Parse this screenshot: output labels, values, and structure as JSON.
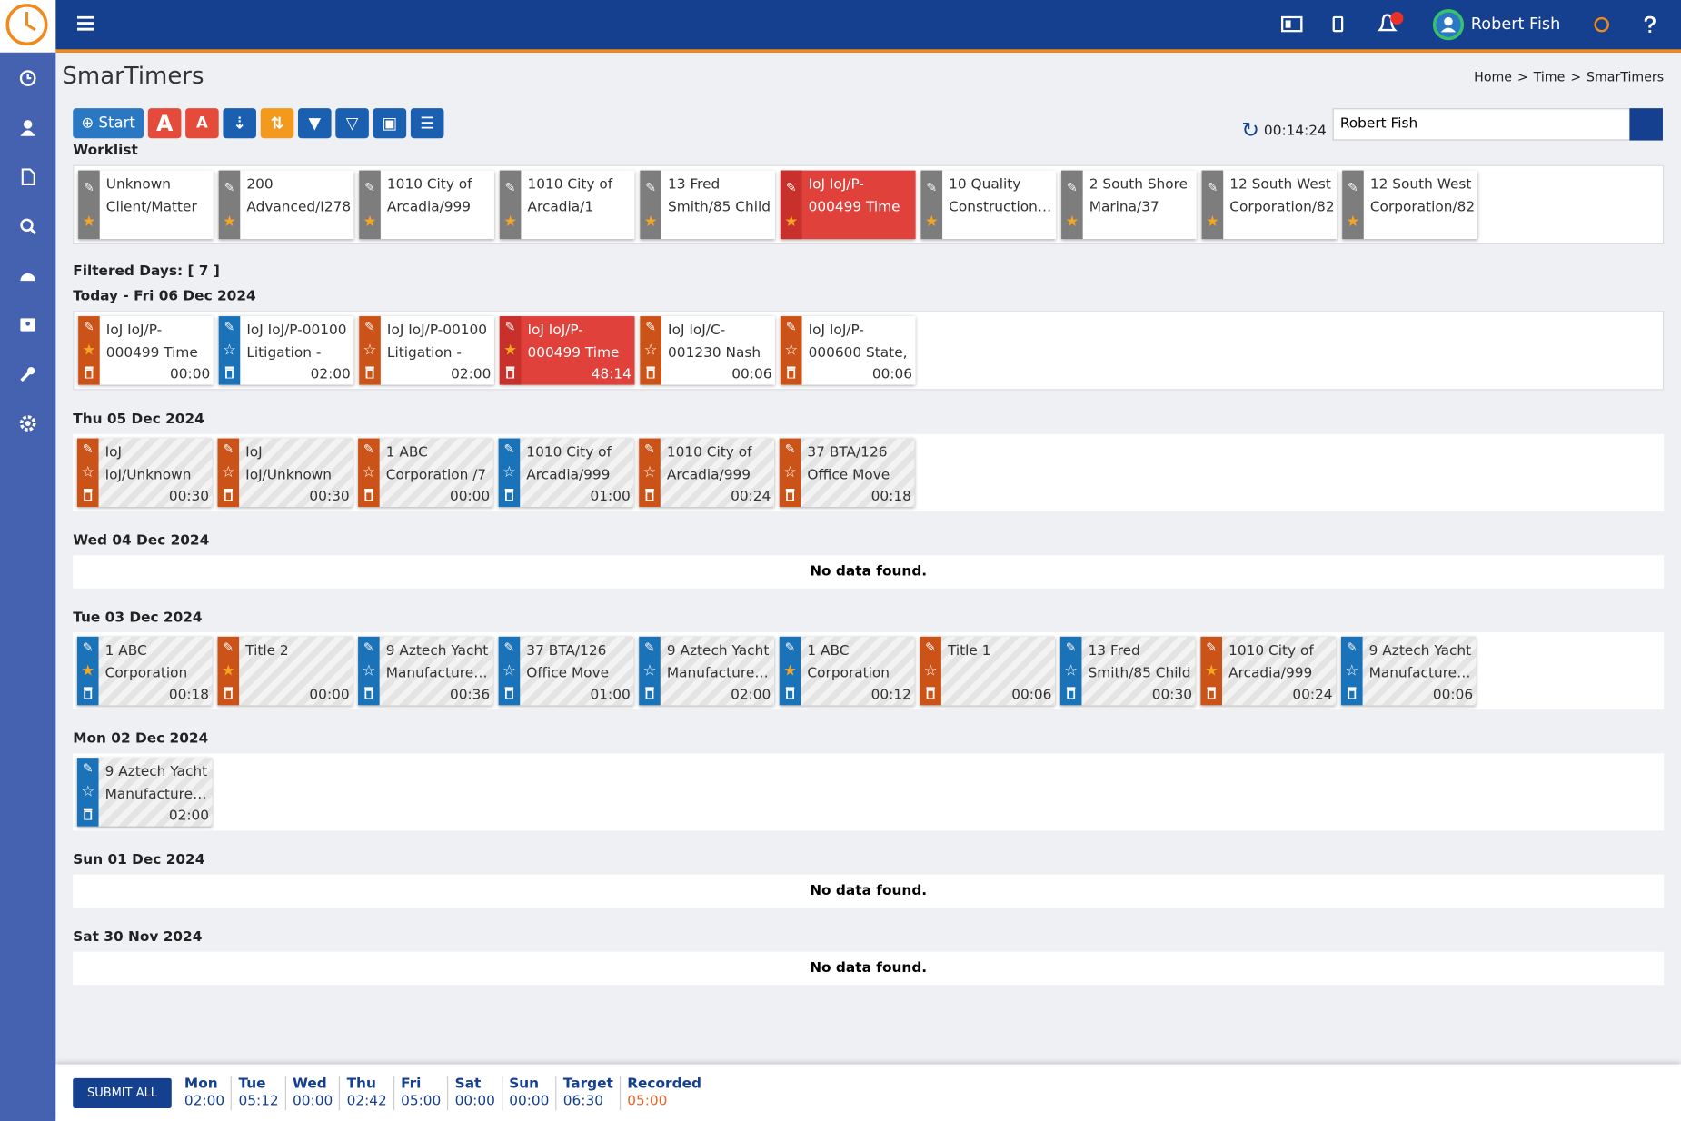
{
  "header": {
    "user": "Robert Fish"
  },
  "page": {
    "title": "SmarTimers",
    "breadcrumb": [
      "Home",
      "Time",
      "SmarTimers"
    ],
    "separator": ">"
  },
  "toolbar": {
    "start": "Start",
    "timer": "00:14:24",
    "user_select": "Robert Fish"
  },
  "worklist": {
    "label": "Worklist",
    "items": [
      {
        "text": "Unknown Client/Matter",
        "color": "gray"
      },
      {
        "text": "200 Advanced/I278",
        "color": "gray"
      },
      {
        "text": "1010 City of Arcadia/999",
        "color": "gray"
      },
      {
        "text": "1010 City of Arcadia/1",
        "color": "gray"
      },
      {
        "text": "13 Fred Smith/85 Child",
        "color": "gray"
      },
      {
        "text": "IoJ IoJ/P-000499 Time",
        "color": "red"
      },
      {
        "text": "10 Quality Construction…",
        "color": "gray"
      },
      {
        "text": "2 South Shore Marina/37",
        "color": "gray"
      },
      {
        "text": "12 South West Corporation/82",
        "color": "gray"
      },
      {
        "text": "12 South West Corporation/82",
        "color": "gray"
      }
    ]
  },
  "filtered_days": "Filtered Days: [ 7 ]",
  "days": [
    {
      "label": "Today - Fri 06 Dec 2024",
      "today": true,
      "entries": [
        {
          "text": "IoJ IoJ/P-000499 Time",
          "time": "00:00",
          "color": "orange",
          "starred": true
        },
        {
          "text": "IoJ IoJ/P-00100 Litigation -",
          "time": "02:00",
          "color": "blue",
          "starred": false
        },
        {
          "text": "IoJ IoJ/P-00100 Litigation -",
          "time": "02:00",
          "color": "orange",
          "starred": false
        },
        {
          "text": "IoJ IoJ/P-000499 Time",
          "time": "48:14",
          "color": "red",
          "starred": true
        },
        {
          "text": "IoJ IoJ/C-001230 Nash",
          "time": "00:06",
          "color": "orange",
          "starred": false
        },
        {
          "text": "IoJ IoJ/P-000600 State,",
          "time": "00:06",
          "color": "orange",
          "starred": false
        }
      ]
    },
    {
      "label": "Thu 05 Dec 2024",
      "entries": [
        {
          "text": "IoJ IoJ/Unknown",
          "time": "00:30",
          "color": "orange",
          "starred": false
        },
        {
          "text": "IoJ IoJ/Unknown",
          "time": "00:30",
          "color": "orange",
          "starred": false
        },
        {
          "text": "1 ABC Corporation /7",
          "time": "00:00",
          "color": "orange",
          "starred": false
        },
        {
          "text": "1010 City of Arcadia/999",
          "time": "01:00",
          "color": "blue",
          "starred": false
        },
        {
          "text": "1010 City of Arcadia/999",
          "time": "00:24",
          "color": "orange",
          "starred": false
        },
        {
          "text": "37 BTA/126 Office Move",
          "time": "00:18",
          "color": "orange",
          "starred": false
        }
      ]
    },
    {
      "label": "Wed 04 Dec 2024",
      "empty": "No data found."
    },
    {
      "label": "Tue 03 Dec 2024",
      "entries": [
        {
          "text": "1 ABC Corporation",
          "time": "00:18",
          "color": "blue",
          "starred": true
        },
        {
          "text": "Title 2",
          "time": "00:00",
          "color": "orange",
          "starred": true
        },
        {
          "text": "9 Aztech Yacht Manufacture…",
          "time": "00:36",
          "color": "blue",
          "starred": false
        },
        {
          "text": "37 BTA/126 Office Move",
          "time": "01:00",
          "color": "blue",
          "starred": false
        },
        {
          "text": "9 Aztech Yacht Manufacture…",
          "time": "02:00",
          "color": "blue",
          "starred": false
        },
        {
          "text": "1 ABC Corporation",
          "time": "00:12",
          "color": "blue",
          "starred": true
        },
        {
          "text": "Title 1",
          "time": "00:06",
          "color": "orange",
          "starred": false
        },
        {
          "text": "13 Fred Smith/85 Child",
          "time": "00:30",
          "color": "blue",
          "starred": false
        },
        {
          "text": "1010 City of Arcadia/999",
          "time": "00:24",
          "color": "orange",
          "starred": true
        },
        {
          "text": "9 Aztech Yacht Manufacture…",
          "time": "00:06",
          "color": "blue",
          "starred": false
        }
      ]
    },
    {
      "label": "Mon 02 Dec 2024",
      "entries": [
        {
          "text": "9 Aztech Yacht Manufacture…",
          "time": "02:00",
          "color": "blue",
          "starred": false
        }
      ]
    },
    {
      "label": "Sun 01 Dec 2024",
      "empty": "No data found."
    },
    {
      "label": "Sat 30 Nov 2024",
      "empty": "No data found."
    }
  ],
  "footer": {
    "submit": "SUBMIT ALL",
    "totals": [
      {
        "day": "Mon",
        "time": "02:00"
      },
      {
        "day": "Tue",
        "time": "05:12"
      },
      {
        "day": "Wed",
        "time": "00:00"
      },
      {
        "day": "Thu",
        "time": "02:42"
      },
      {
        "day": "Fri",
        "time": "05:00"
      },
      {
        "day": "Sat",
        "time": "00:00"
      },
      {
        "day": "Sun",
        "time": "00:00"
      },
      {
        "day": "Target",
        "time": "06:30"
      },
      {
        "day": "Recorded",
        "time": "05:00",
        "highlight": true
      }
    ]
  }
}
